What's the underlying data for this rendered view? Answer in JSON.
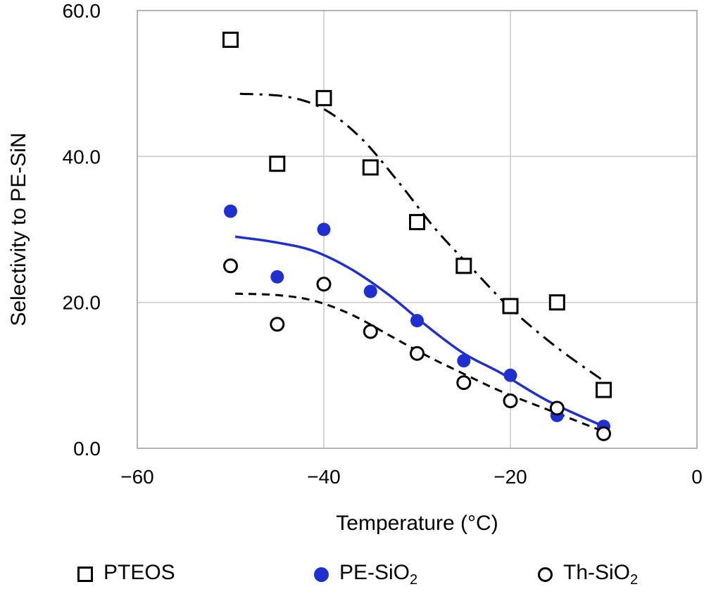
{
  "chart_data": {
    "type": "scatter",
    "title": "",
    "xlabel": "Temperature (°C)",
    "ylabel": "Selectivity to PE-SiN",
    "xlim": [
      -60,
      0
    ],
    "ylim": [
      0,
      60
    ],
    "x_ticks": [
      -60,
      -40,
      -20,
      0
    ],
    "x_tick_labels": [
      "−60",
      "−40",
      "−20",
      "0"
    ],
    "y_ticks": [
      0,
      20,
      40,
      60
    ],
    "y_tick_labels": [
      "0.0",
      "20.0",
      "40.0",
      "60.0"
    ],
    "grid": true,
    "legend_position": "bottom",
    "colors": {
      "blue": "#2030d0",
      "black": "#000000",
      "grid": "#c9c9c9",
      "axis": "#9a9a9a"
    },
    "series": [
      {
        "name": "PTEOS",
        "label_main": "PTEOS",
        "label_sub": "",
        "marker": "open-square",
        "color": "#000000",
        "line_style": "dash-dot",
        "points": [
          [
            -50,
            56
          ],
          [
            -45,
            39
          ],
          [
            -40,
            48
          ],
          [
            -35,
            38.5
          ],
          [
            -30,
            31
          ],
          [
            -25,
            25
          ],
          [
            -20,
            19.5
          ],
          [
            -15,
            20
          ],
          [
            -10,
            8
          ]
        ],
        "trend": [
          [
            -49,
            48.6
          ],
          [
            -44,
            48.2
          ],
          [
            -40,
            46.5
          ],
          [
            -36,
            42.5
          ],
          [
            -32,
            36.5
          ],
          [
            -28,
            30
          ],
          [
            -24,
            24.5
          ],
          [
            -20,
            19.2
          ],
          [
            -15,
            13.8
          ],
          [
            -9.5,
            8.8
          ]
        ]
      },
      {
        "name": "PE-SiO2",
        "label_main": "PE-SiO",
        "label_sub": "2",
        "marker": "filled-circle",
        "color": "#2030d0",
        "line_style": "solid",
        "points": [
          [
            -50,
            32.5
          ],
          [
            -45,
            23.5
          ],
          [
            -40,
            30
          ],
          [
            -35,
            21.5
          ],
          [
            -30,
            17.5
          ],
          [
            -25,
            12
          ],
          [
            -20,
            10
          ],
          [
            -15,
            4.5
          ],
          [
            -10,
            3
          ]
        ],
        "trend": [
          [
            -49.5,
            29
          ],
          [
            -45,
            28.2
          ],
          [
            -41,
            27
          ],
          [
            -37,
            24.5
          ],
          [
            -33,
            21
          ],
          [
            -29,
            16.8
          ],
          [
            -25,
            13
          ],
          [
            -21,
            10.3
          ],
          [
            -16,
            6.5
          ],
          [
            -10,
            3
          ]
        ]
      },
      {
        "name": "Th-SiO2",
        "label_main": "Th-SiO",
        "label_sub": "2",
        "marker": "open-circle",
        "color": "#000000",
        "line_style": "dashed",
        "points": [
          [
            -50,
            25
          ],
          [
            -45,
            17
          ],
          [
            -40,
            22.5
          ],
          [
            -35,
            16
          ],
          [
            -30,
            13
          ],
          [
            -25,
            9
          ],
          [
            -20,
            6.5
          ],
          [
            -15,
            5.5
          ],
          [
            -10,
            2
          ]
        ],
        "trend": [
          [
            -49.5,
            21.2
          ],
          [
            -45,
            21
          ],
          [
            -41,
            20.2
          ],
          [
            -37,
            18.3
          ],
          [
            -33,
            15.5
          ],
          [
            -29,
            12.7
          ],
          [
            -25,
            10.2
          ],
          [
            -21,
            7.8
          ],
          [
            -16,
            5.3
          ],
          [
            -10,
            2.3
          ]
        ]
      }
    ]
  }
}
